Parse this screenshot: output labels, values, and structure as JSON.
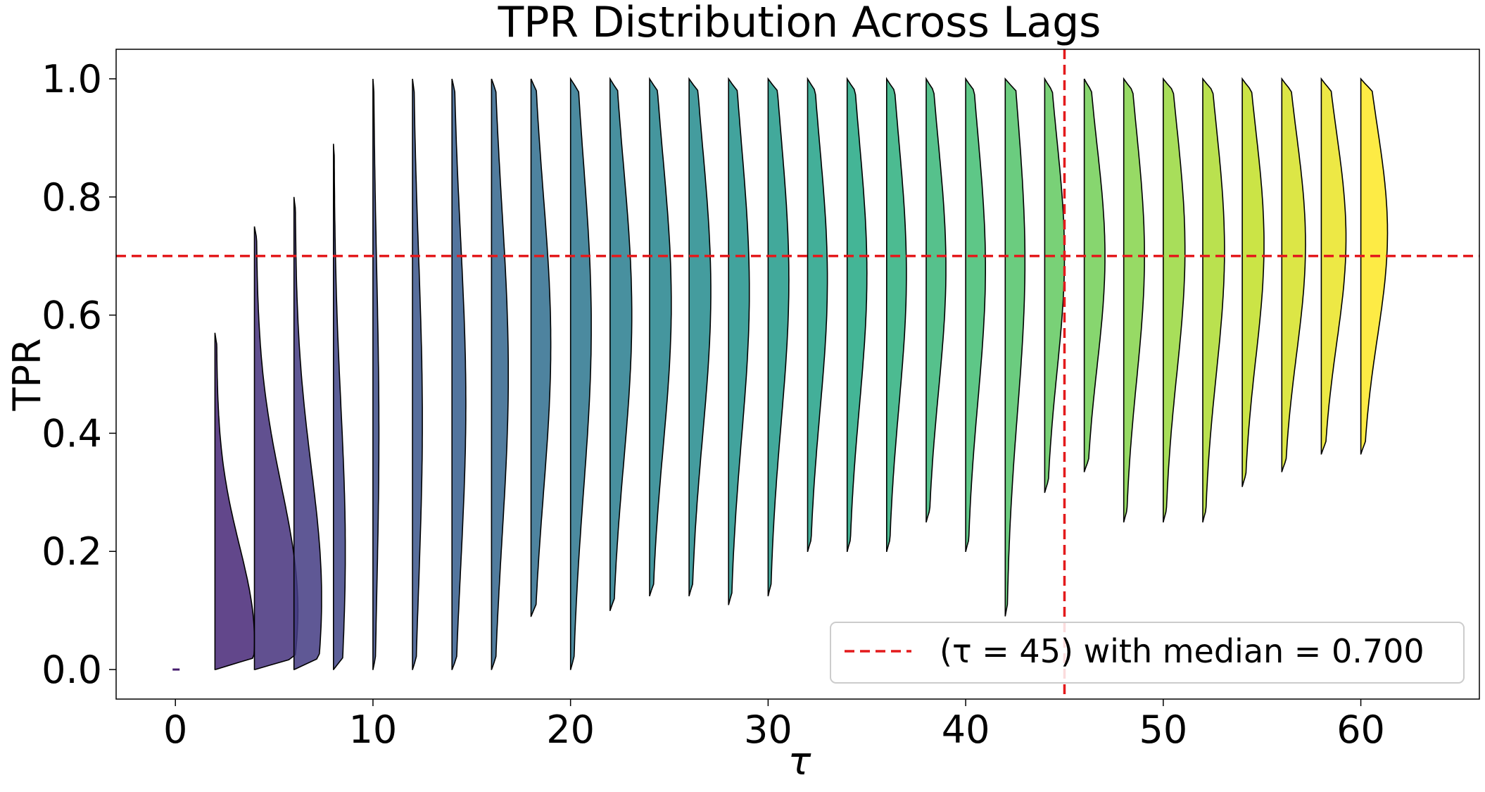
{
  "chart_data": {
    "type": "violin",
    "title": "TPR Distribution Across Lags",
    "xlabel": "τ",
    "ylabel": "TPR",
    "xlim": [
      -3,
      66
    ],
    "ylim": [
      -0.05,
      1.05
    ],
    "xticks": [
      0,
      10,
      20,
      30,
      40,
      50,
      60
    ],
    "yticks": [
      0.0,
      0.2,
      0.4,
      0.6,
      0.8,
      1.0
    ],
    "ytick_labels": [
      "0.0",
      "0.2",
      "0.4",
      "0.6",
      "0.8",
      "1.0"
    ],
    "grid": false,
    "legend": {
      "position": "bottom-right",
      "label": "(τ = 45) with median = 0.700"
    },
    "reference_lines": {
      "vertical_x": 45,
      "horizontal_y": 0.7,
      "color": "#e31a1c",
      "style": "dashed"
    },
    "colormap": "viridis",
    "half_violins": [
      {
        "lag": 0,
        "min": 0.0,
        "max": 0.0,
        "peak_y": 0.0,
        "peak_width": 0.3
      },
      {
        "lag": 2,
        "min": 0.0,
        "max": 0.57,
        "peak_y": 0.05,
        "peak_width": 2.0
      },
      {
        "lag": 4,
        "min": 0.0,
        "max": 0.75,
        "peak_y": 0.1,
        "peak_width": 2.2
      },
      {
        "lag": 6,
        "min": 0.0,
        "max": 0.8,
        "peak_y": 0.12,
        "peak_width": 1.4
      },
      {
        "lag": 8,
        "min": 0.0,
        "max": 0.89,
        "peak_y": 0.2,
        "peak_width": 0.6
      },
      {
        "lag": 10,
        "min": 0.0,
        "max": 1.0,
        "peak_y": 0.4,
        "peak_width": 0.3
      },
      {
        "lag": 12,
        "min": 0.0,
        "max": 1.0,
        "peak_y": 0.42,
        "peak_width": 0.5
      },
      {
        "lag": 14,
        "min": 0.0,
        "max": 1.0,
        "peak_y": 0.45,
        "peak_width": 0.7
      },
      {
        "lag": 16,
        "min": 0.0,
        "max": 1.0,
        "peak_y": 0.5,
        "peak_width": 0.85
      },
      {
        "lag": 18,
        "min": 0.09,
        "max": 1.0,
        "peak_y": 0.55,
        "peak_width": 1.0
      },
      {
        "lag": 20,
        "min": 0.0,
        "max": 1.0,
        "peak_y": 0.58,
        "peak_width": 1.05
      },
      {
        "lag": 22,
        "min": 0.1,
        "max": 1.0,
        "peak_y": 0.6,
        "peak_width": 1.1
      },
      {
        "lag": 24,
        "min": 0.125,
        "max": 1.0,
        "peak_y": 0.62,
        "peak_width": 1.1
      },
      {
        "lag": 26,
        "min": 0.125,
        "max": 1.0,
        "peak_y": 0.64,
        "peak_width": 1.1
      },
      {
        "lag": 28,
        "min": 0.11,
        "max": 1.0,
        "peak_y": 0.64,
        "peak_width": 1.05
      },
      {
        "lag": 30,
        "min": 0.125,
        "max": 1.0,
        "peak_y": 0.66,
        "peak_width": 1.05
      },
      {
        "lag": 32,
        "min": 0.2,
        "max": 1.0,
        "peak_y": 0.66,
        "peak_width": 1.0
      },
      {
        "lag": 34,
        "min": 0.2,
        "max": 1.0,
        "peak_y": 0.67,
        "peak_width": 1.0
      },
      {
        "lag": 36,
        "min": 0.2,
        "max": 1.0,
        "peak_y": 0.67,
        "peak_width": 1.0
      },
      {
        "lag": 38,
        "min": 0.25,
        "max": 1.0,
        "peak_y": 0.68,
        "peak_width": 1.0
      },
      {
        "lag": 40,
        "min": 0.2,
        "max": 1.0,
        "peak_y": 0.68,
        "peak_width": 1.0
      },
      {
        "lag": 42,
        "min": 0.09,
        "max": 1.0,
        "peak_y": 0.69,
        "peak_width": 1.0
      },
      {
        "lag": 44,
        "min": 0.3,
        "max": 1.0,
        "peak_y": 0.7,
        "peak_width": 1.0
      },
      {
        "lag": 46,
        "min": 0.335,
        "max": 1.0,
        "peak_y": 0.7,
        "peak_width": 1.05
      },
      {
        "lag": 48,
        "min": 0.25,
        "max": 1.0,
        "peak_y": 0.7,
        "peak_width": 1.05
      },
      {
        "lag": 50,
        "min": 0.25,
        "max": 1.0,
        "peak_y": 0.71,
        "peak_width": 1.1
      },
      {
        "lag": 52,
        "min": 0.25,
        "max": 1.0,
        "peak_y": 0.71,
        "peak_width": 1.1
      },
      {
        "lag": 54,
        "min": 0.31,
        "max": 1.0,
        "peak_y": 0.72,
        "peak_width": 1.1
      },
      {
        "lag": 56,
        "min": 0.335,
        "max": 1.0,
        "peak_y": 0.72,
        "peak_width": 1.2
      },
      {
        "lag": 58,
        "min": 0.365,
        "max": 1.0,
        "peak_y": 0.73,
        "peak_width": 1.25
      },
      {
        "lag": 60,
        "min": 0.365,
        "max": 1.0,
        "peak_y": 0.74,
        "peak_width": 1.35
      }
    ]
  }
}
